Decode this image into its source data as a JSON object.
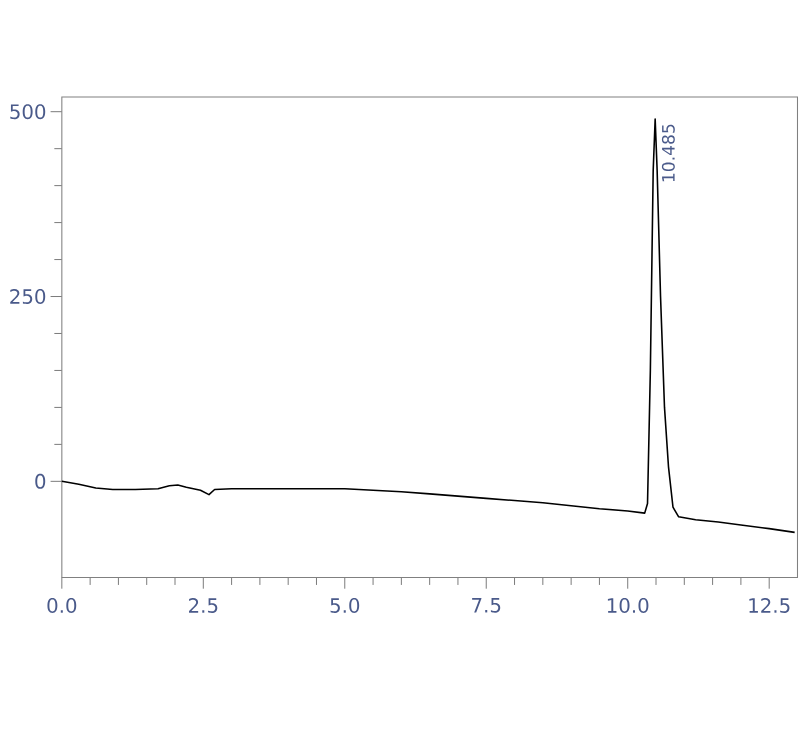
{
  "chart_data": {
    "type": "line",
    "x": [
      0,
      0.3,
      0.6,
      0.9,
      1.3,
      1.7,
      1.9,
      2.05,
      2.2,
      2.45,
      2.6,
      2.7,
      3.0,
      3.5,
      4.0,
      4.5,
      5.0,
      5.5,
      6.0,
      6.5,
      7.0,
      7.5,
      8.0,
      8.5,
      9.0,
      9.5,
      10.0,
      10.3,
      10.35,
      10.4,
      10.45,
      10.485,
      10.52,
      10.58,
      10.65,
      10.72,
      10.8,
      10.9,
      11.2,
      11.6,
      12.0,
      12.5,
      12.95
    ],
    "series": [
      {
        "color": "#000000",
        "values": [
          0,
          -4,
          -9,
          -11,
          -11,
          -10,
          -6,
          -5,
          -8,
          -12,
          -18,
          -11,
          -10,
          -10,
          -10,
          -10,
          -10,
          -12,
          -14,
          -17,
          -20,
          -23,
          -26,
          -29,
          -33,
          -37,
          -40,
          -43,
          -30,
          150,
          420,
          490,
          420,
          250,
          100,
          20,
          -35,
          -48,
          -52,
          -55,
          -59,
          -64,
          -69
        ]
      }
    ],
    "xlim": [
      0,
      13
    ],
    "ylim": [
      -130,
      520
    ],
    "xticks": [
      {
        "value": 0,
        "label": "0.0"
      },
      {
        "value": 2.5,
        "label": "2.5"
      },
      {
        "value": 5,
        "label": "5.0"
      },
      {
        "value": 7.5,
        "label": "7.5"
      },
      {
        "value": 10,
        "label": "10.0"
      },
      {
        "value": 12.5,
        "label": "12.5"
      }
    ],
    "yticks": [
      0,
      250,
      500
    ],
    "annotations": [
      {
        "text": "10.485",
        "x": 10.485,
        "y": 490
      }
    ],
    "grid": false,
    "marker": "none",
    "line_style": "solid"
  }
}
